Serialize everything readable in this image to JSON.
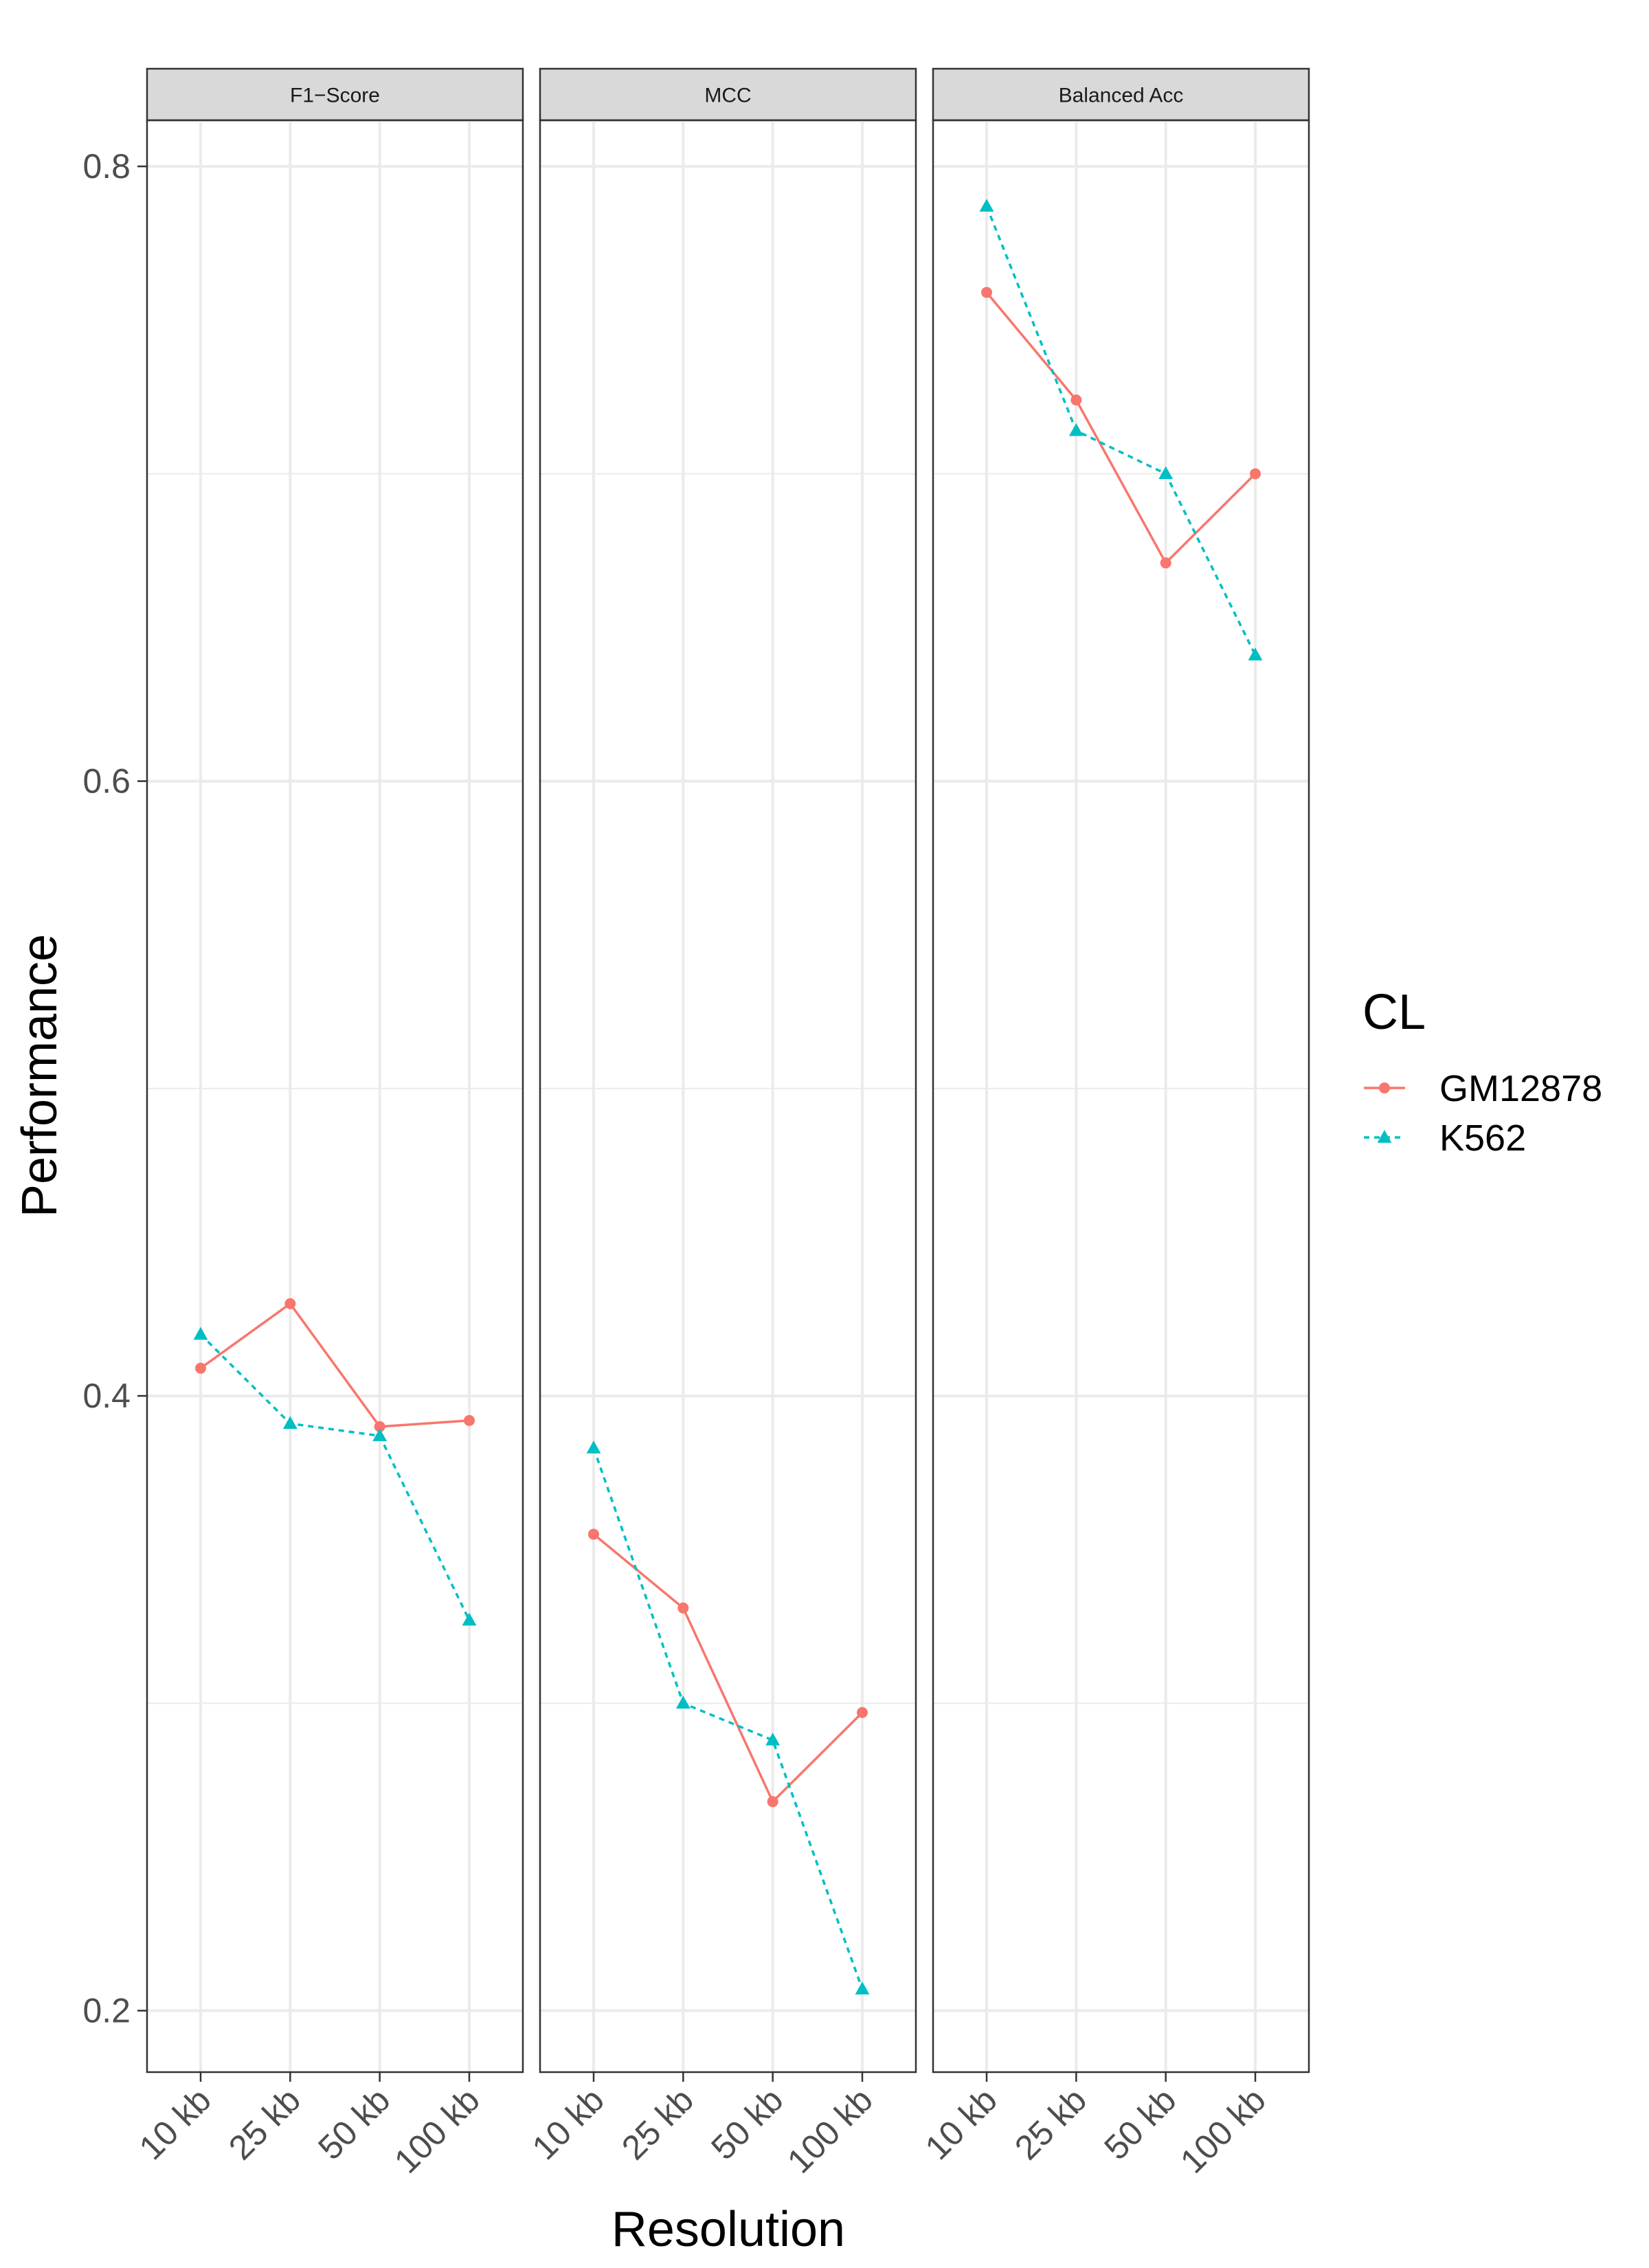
{
  "chart_data": {
    "type": "line",
    "xlabel": "Resolution",
    "ylabel": "Performance",
    "ylim": [
      0.18,
      0.815
    ],
    "yticks": [
      0.2,
      0.4,
      0.6,
      0.8
    ],
    "ytick_labels": [
      "0.2",
      "0.4",
      "0.6",
      "0.8"
    ],
    "categories": [
      "10 kb",
      "25 kb",
      "50 kb",
      "100 kb"
    ],
    "grid": true,
    "legend": {
      "title": "CL",
      "position": "right",
      "entries": [
        "GM12878",
        "K562"
      ]
    },
    "colors": {
      "GM12878": "#F8766D",
      "K562": "#00BFC4"
    },
    "panels": [
      {
        "title": "F1−Score",
        "series": [
          {
            "name": "GM12878",
            "values": [
              0.409,
              0.43,
              0.39,
              0.392
            ]
          },
          {
            "name": "K562",
            "values": [
              0.42,
              0.391,
              0.387,
              0.327
            ]
          }
        ]
      },
      {
        "title": "MCC",
        "series": [
          {
            "name": "GM12878",
            "values": [
              0.355,
              0.331,
              0.268,
              0.297
            ]
          },
          {
            "name": "K562",
            "values": [
              0.383,
              0.3,
              0.288,
              0.207
            ]
          }
        ]
      },
      {
        "title": "Balanced Acc",
        "series": [
          {
            "name": "GM12878",
            "values": [
              0.759,
              0.724,
              0.671,
              0.7
            ]
          },
          {
            "name": "K562",
            "values": [
              0.787,
              0.714,
              0.7,
              0.641
            ]
          }
        ]
      }
    ]
  }
}
